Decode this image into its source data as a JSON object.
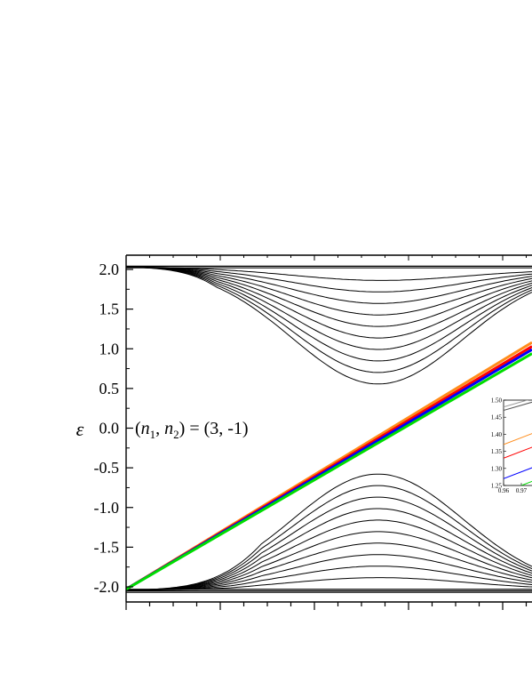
{
  "chart_data": {
    "type": "line",
    "ylabel": "ε",
    "ylim": [
      -2.15,
      2.15
    ],
    "y_ticks": [
      "2.0",
      "1.5",
      "1.0",
      "0.5",
      "0.0",
      "-0.5",
      "-1.0",
      "-1.5",
      "-2.0"
    ],
    "y_tick_values": [
      2.0,
      1.5,
      1.0,
      0.5,
      0.0,
      -0.5,
      -1.0,
      -1.5,
      -2.0
    ],
    "xlim": [
      0,
      1
    ],
    "annotation_parts": {
      "open": "(",
      "n": "n",
      "sub1": "1",
      "comma": ", ",
      "sub2": "2",
      "close": ") = (3, -1)"
    },
    "band_count": 10,
    "edge_states": [
      {
        "color": "#ff8c1a",
        "start": -2.03,
        "end": 1.08
      },
      {
        "color": "#ff0000",
        "start": -2.03,
        "end": 1.03
      },
      {
        "color": "#0000ff",
        "start": -2.03,
        "end": 0.99
      },
      {
        "color": "#00dd00",
        "start": -2.03,
        "end": 0.94
      }
    ],
    "inset": {
      "y_ticks": [
        "1.50",
        "1.45",
        "1.40",
        "1.35",
        "1.30",
        "1.25"
      ],
      "y_tick_values": [
        1.5,
        1.45,
        1.4,
        1.35,
        1.3,
        1.25
      ],
      "x_ticks": [
        "0.96",
        "0.97"
      ],
      "x_tick_values": [
        0.96,
        0.97
      ]
    }
  }
}
